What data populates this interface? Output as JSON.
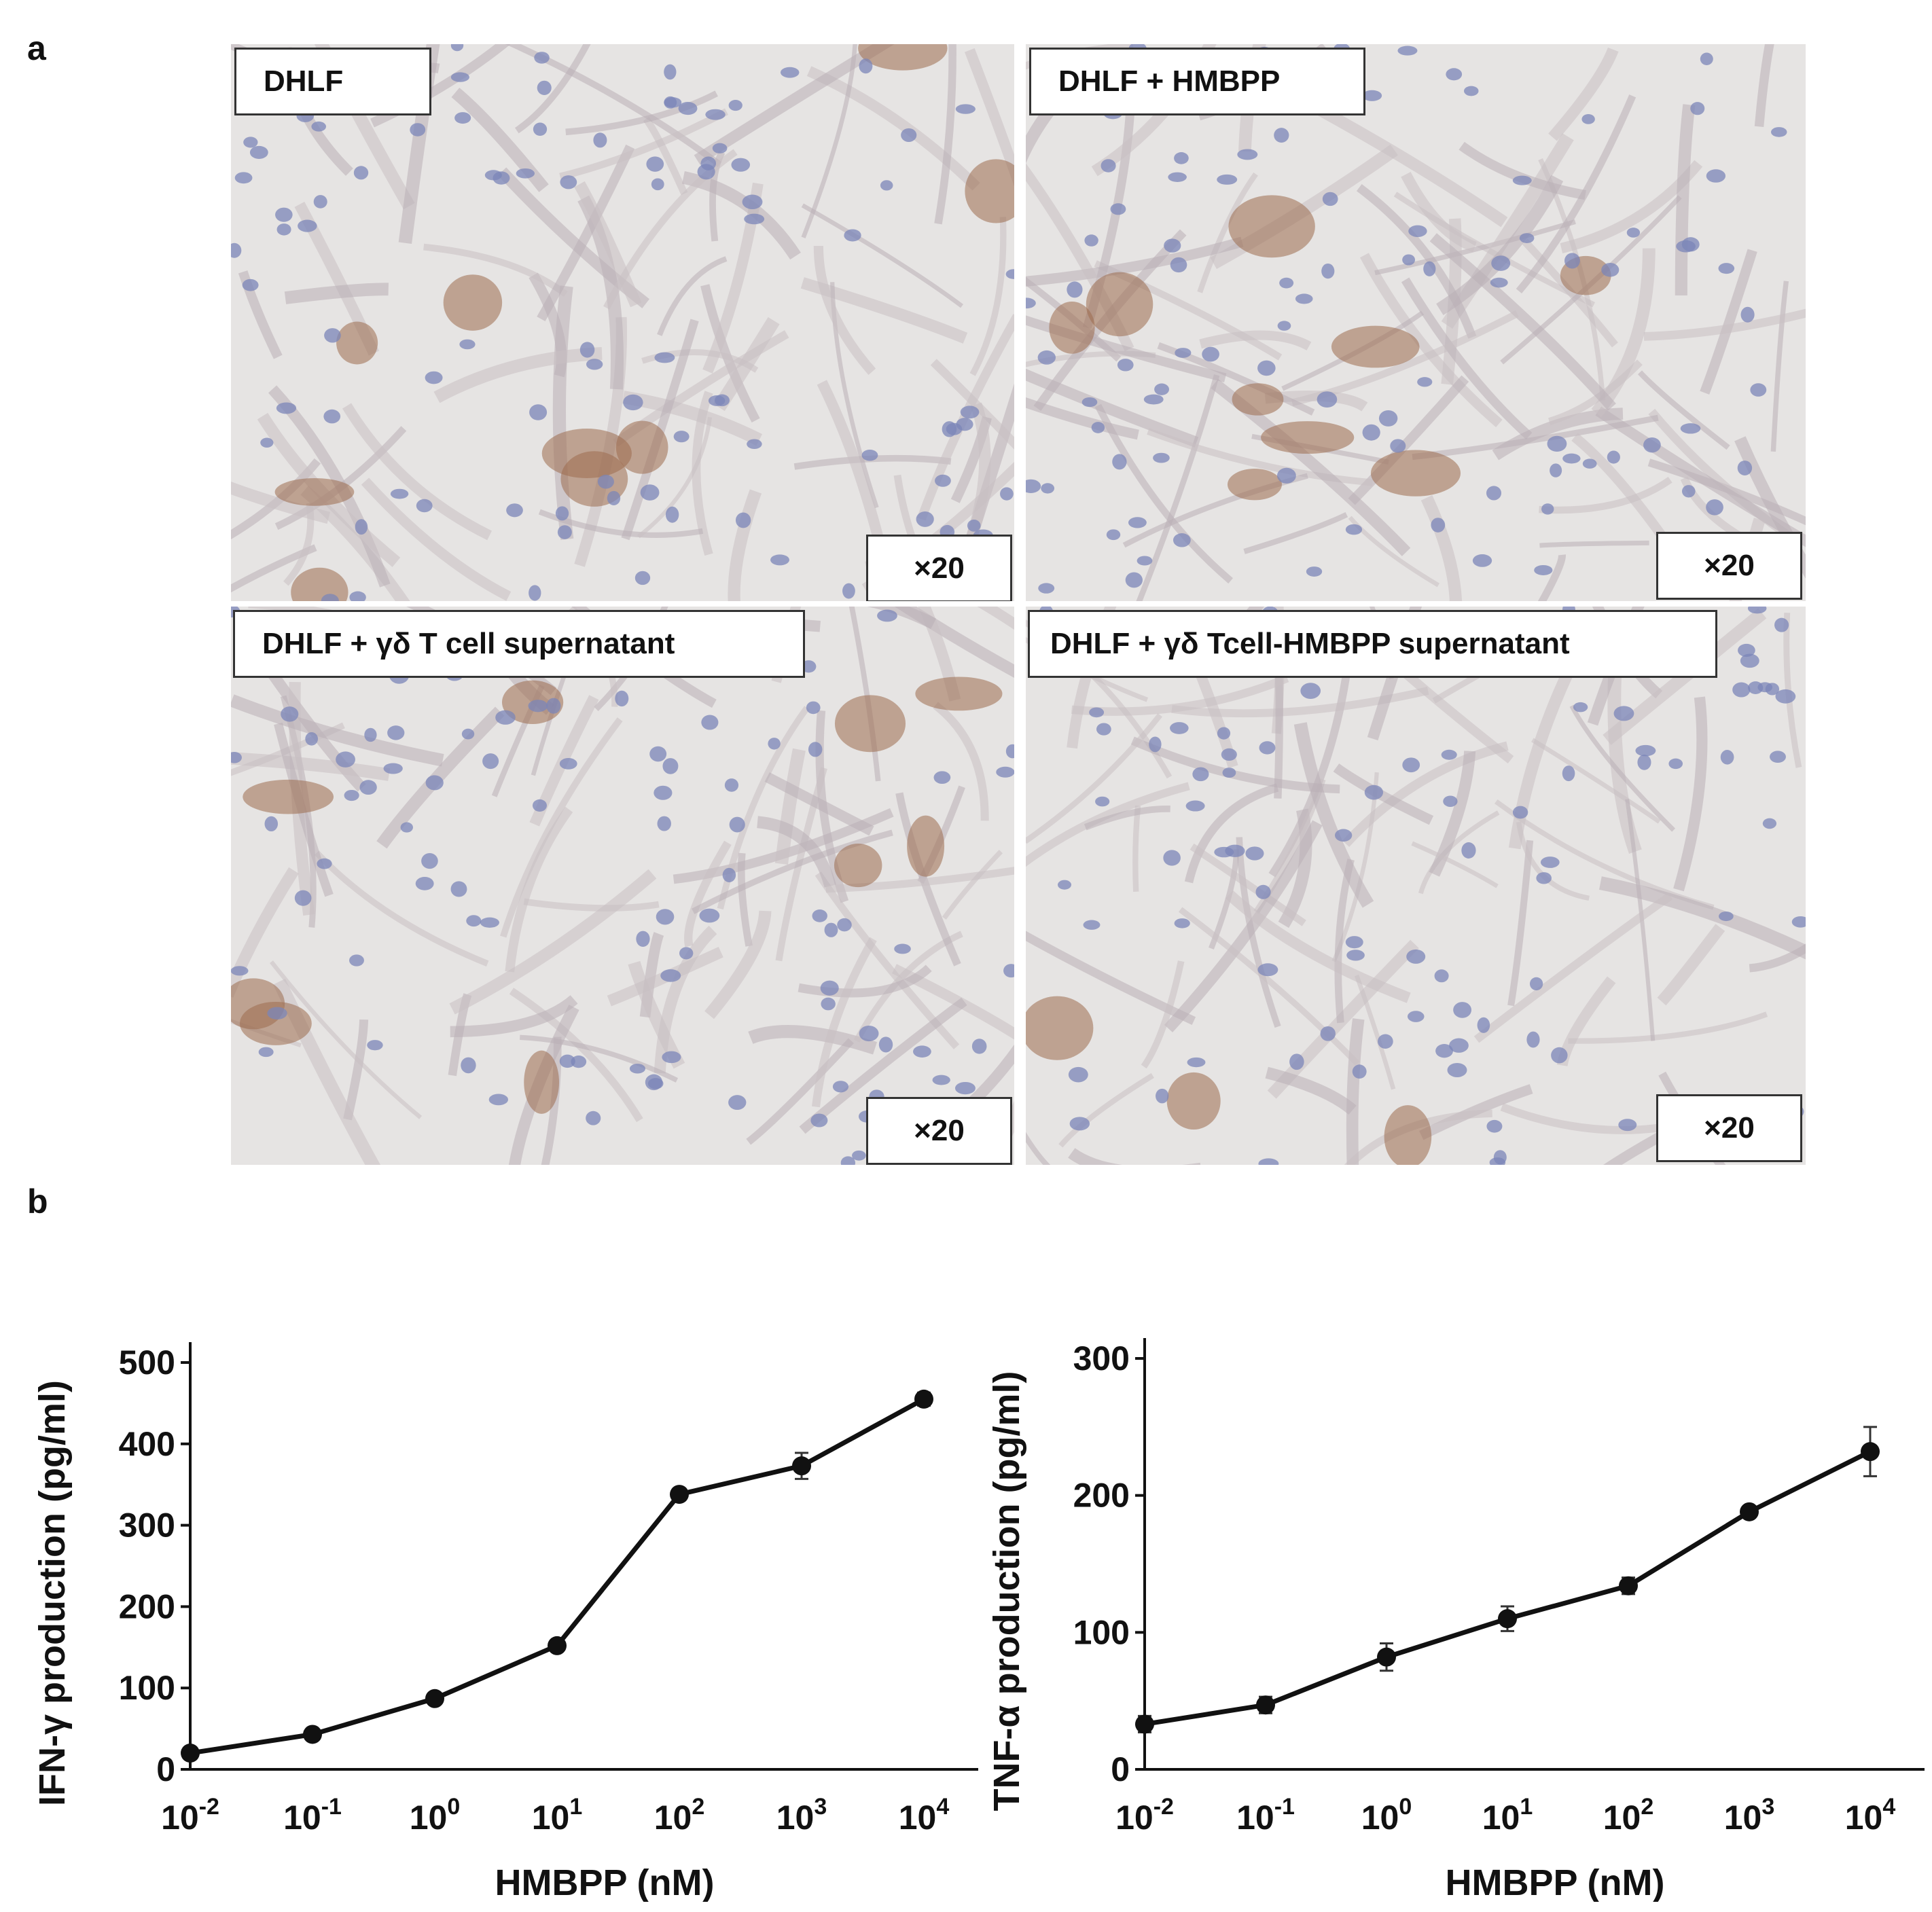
{
  "panel_labels": {
    "a": "a",
    "b": "b"
  },
  "micrographs": [
    {
      "title": "DHLF",
      "magnification": "×20"
    },
    {
      "title": "DHLF + HMBPP",
      "magnification": "×20"
    },
    {
      "title": "DHLF + γδ T cell supernatant",
      "magnification": "×20"
    },
    {
      "title": "DHLF + γδ Tcell-HMBPP supernatant",
      "magnification": "×20"
    }
  ],
  "chart_data": [
    {
      "type": "line",
      "xlabel": "HMBPP (nM)",
      "ylabel": "IFN-γ production (pg/ml)",
      "x_scale": "log",
      "x": [
        0.01,
        0.1,
        1,
        10,
        100,
        1000,
        10000
      ],
      "x_tick_labels": [
        {
          "base": "10",
          "exp": "-2"
        },
        {
          "base": "10",
          "exp": "-1"
        },
        {
          "base": "10",
          "exp": "0"
        },
        {
          "base": "10",
          "exp": "1"
        },
        {
          "base": "10",
          "exp": "2"
        },
        {
          "base": "10",
          "exp": "3"
        },
        {
          "base": "10",
          "exp": "4"
        }
      ],
      "values": [
        20,
        43,
        87,
        152,
        338,
        373,
        455
      ],
      "errors": [
        3,
        3,
        4,
        5,
        5,
        16,
        8
      ],
      "y_ticks": [
        0,
        100,
        200,
        300,
        400,
        500
      ],
      "ylim": [
        0,
        500
      ]
    },
    {
      "type": "line",
      "xlabel": "HMBPP (nM)",
      "ylabel": "TNF-α production (pg/ml)",
      "x_scale": "log",
      "x": [
        0.01,
        0.1,
        1,
        10,
        100,
        1000,
        10000
      ],
      "x_tick_labels": [
        {
          "base": "10",
          "exp": "-2"
        },
        {
          "base": "10",
          "exp": "-1"
        },
        {
          "base": "10",
          "exp": "0"
        },
        {
          "base": "10",
          "exp": "1"
        },
        {
          "base": "10",
          "exp": "2"
        },
        {
          "base": "10",
          "exp": "3"
        },
        {
          "base": "10",
          "exp": "4"
        }
      ],
      "values": [
        33,
        47,
        82,
        110,
        134,
        188,
        232
      ],
      "errors": [
        6,
        6,
        10,
        9,
        6,
        3,
        18
      ],
      "y_ticks": [
        0,
        100,
        200,
        300
      ],
      "ylim": [
        0,
        300
      ]
    }
  ]
}
